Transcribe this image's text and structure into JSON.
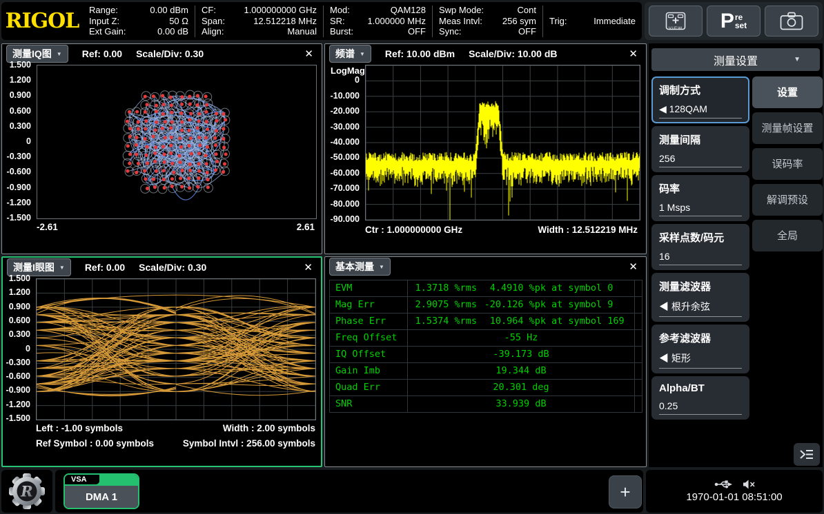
{
  "top_bar": {
    "logo_text": "RIGOL",
    "groups": [
      {
        "rows": [
          {
            "label": "Range:",
            "value": "0.00 dBm"
          },
          {
            "label": "Input Z:",
            "value": "50 Ω"
          },
          {
            "label": "Ext Gain:",
            "value": "0.00 dB"
          }
        ]
      },
      {
        "rows": [
          {
            "label": "CF:",
            "value": "1.000000000 GHz"
          },
          {
            "label": "Span:",
            "value": "12.512218 MHz"
          },
          {
            "label": "Align:",
            "value": "Manual"
          }
        ]
      },
      {
        "rows": [
          {
            "label": "Mod:",
            "value": "QAM128"
          },
          {
            "label": "SR:",
            "value": "1.000000 MHz"
          },
          {
            "label": "Burst:",
            "value": "OFF"
          }
        ]
      },
      {
        "rows": [
          {
            "label": "Swp Mode:",
            "value": "Cont"
          },
          {
            "label": "Meas Intvl:",
            "value": "256 sym"
          },
          {
            "label": "Sync:",
            "value": "OFF"
          }
        ]
      },
      {
        "rows": [
          {
            "label": "Trig:",
            "value": "Immediate"
          }
        ]
      }
    ],
    "buttons": {
      "view_label": "VIEW",
      "preset_p": "P",
      "preset_re": "re",
      "preset_set": "set"
    }
  },
  "panels": {
    "iq": {
      "title": "测量IQ图",
      "ref": "Ref: 0.00",
      "scale": "Scale/Div: 0.30",
      "close": "✕",
      "y_ticks": [
        "1.500",
        "1.200",
        "0.900",
        "0.600",
        "0.300",
        "0",
        "-0.300",
        "-0.600",
        "-0.900",
        "-1.200",
        "-1.500"
      ],
      "x_left": "-2.61",
      "x_right": "2.61"
    },
    "spectrum": {
      "title": "频谱",
      "ref": "Ref: 10.00 dBm",
      "scale": "Scale/Div: 10.00 dB",
      "close": "✕",
      "mode": "LogMag",
      "y_ticks": [
        "0",
        "-10.000",
        "-20.000",
        "-30.000",
        "-40.000",
        "-50.000",
        "-60.000",
        "-70.000",
        "-80.000",
        "-90.000"
      ],
      "ctr": "Ctr : 1.000000000 GHz",
      "width": "Width : 12.512219 MHz"
    },
    "eye": {
      "title": "测量I眼图",
      "ref": "Ref: 0.00",
      "scale": "Scale/Div: 0.30",
      "close": "✕",
      "y_ticks": [
        "1.500",
        "1.200",
        "0.900",
        "0.600",
        "0.300",
        "0",
        "-0.300",
        "-0.600",
        "-0.900",
        "-1.200",
        "-1.500"
      ],
      "footer_left": "Left : -1.00 symbols",
      "footer_width": "Width : 2.00 symbols",
      "footer_ref": "Ref Symbol : 0.00 symbols",
      "footer_intvl": "Symbol Intvl : 256.00 symbols"
    },
    "measure": {
      "title": "基本测量",
      "close": "✕",
      "rows": [
        {
          "name": "EVM",
          "rms": "1.3718 %rms",
          "pk": "4.4910 %pk",
          "at": "at symbol 0"
        },
        {
          "name": "Mag Err",
          "rms": "2.9075 %rms",
          "pk": "-20.126 %pk",
          "at": "at symbol 9"
        },
        {
          "name": "Phase Err",
          "rms": "1.5374 %rms",
          "pk": "10.964 %pk",
          "at": "at symbol 169"
        },
        {
          "name": "Freq Offset",
          "value": "-55 Hz"
        },
        {
          "name": "IQ Offset",
          "value": "-39.173 dB"
        },
        {
          "name": "Gain Imb",
          "value": "19.344 dB"
        },
        {
          "name": "Quad Err",
          "value": "20.301 deg"
        },
        {
          "name": "SNR",
          "value": "33.939 dB"
        }
      ]
    }
  },
  "sidebar": {
    "title": "测量设置",
    "items": [
      {
        "label": "调制方式",
        "value": "◀ 128QAM"
      },
      {
        "label": "测量间隔",
        "value": "256"
      },
      {
        "label": "码率",
        "value": "1 Msps"
      },
      {
        "label": "采样点数/码元",
        "value": "16"
      },
      {
        "label": "测量滤波器",
        "value": "◀ 根升余弦"
      },
      {
        "label": "参考滤波器",
        "value": "◀ 矩形"
      },
      {
        "label": "Alpha/BT",
        "value": "0.25"
      }
    ],
    "tabs": [
      "设置",
      "测量帧设置",
      "误码率",
      "解调预设",
      "全局"
    ]
  },
  "bottom_bar": {
    "task_type": "VSA",
    "task_name": "DMA 1",
    "add_label": "+",
    "datetime": "1970-01-01 08:51:00"
  },
  "colors": {
    "accent_green": "#25c06f",
    "trace_yellow": "#ffff00",
    "trace_orange": "#e7a63d",
    "trace_blue": "#6f9bdc",
    "dot_red": "#e33b3b",
    "text_green": "#00d000",
    "select_blue": "#5b9bd5"
  }
}
